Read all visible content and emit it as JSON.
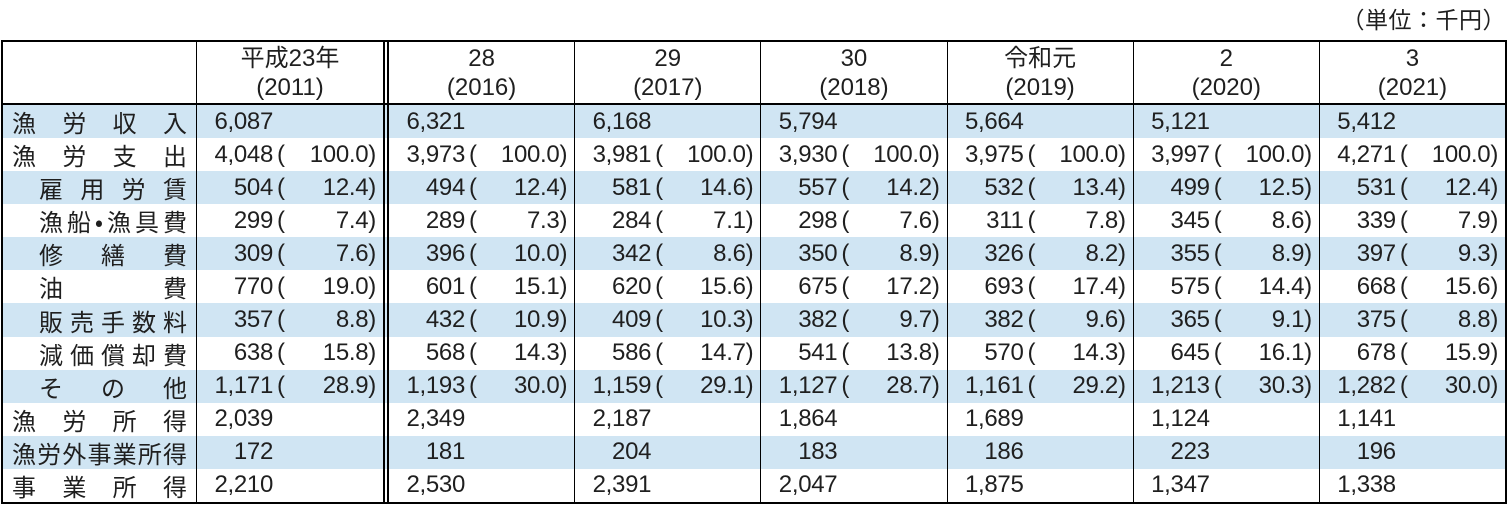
{
  "unit_note": "（単位：千円）",
  "colors": {
    "stripe": "#d0e5f3",
    "border": "#000000",
    "text": "#1f1f1f",
    "page_bg": "#ffffff"
  },
  "table": {
    "corner_label": "",
    "columns": [
      {
        "era": "平成23年",
        "year": "(2011)"
      },
      {
        "era": "28",
        "year": "(2016)"
      },
      {
        "era": "29",
        "year": "(2017)"
      },
      {
        "era": "30",
        "year": "(2018)"
      },
      {
        "era": "令和元",
        "year": "(2019)"
      },
      {
        "era": "2",
        "year": "(2020)"
      },
      {
        "era": "3",
        "year": "(2021)"
      }
    ],
    "rows": [
      {
        "label": "漁労収入",
        "indent": false,
        "values": [
          {
            "num": "6,087"
          },
          {
            "num": "6,321"
          },
          {
            "num": "6,168"
          },
          {
            "num": "5,794"
          },
          {
            "num": "5,664"
          },
          {
            "num": "5,121"
          },
          {
            "num": "5,412"
          }
        ]
      },
      {
        "label": "漁労支出",
        "indent": false,
        "values": [
          {
            "num": "4,048",
            "pct": "100.0"
          },
          {
            "num": "3,973",
            "pct": "100.0"
          },
          {
            "num": "3,981",
            "pct": "100.0"
          },
          {
            "num": "3,930",
            "pct": "100.0"
          },
          {
            "num": "3,975",
            "pct": "100.0"
          },
          {
            "num": "3,997",
            "pct": "100.0"
          },
          {
            "num": "4,271",
            "pct": "100.0"
          }
        ]
      },
      {
        "label": "雇用労賃",
        "indent": true,
        "values": [
          {
            "num": "504",
            "pct": "12.4"
          },
          {
            "num": "494",
            "pct": "12.4"
          },
          {
            "num": "581",
            "pct": "14.6"
          },
          {
            "num": "557",
            "pct": "14.2"
          },
          {
            "num": "532",
            "pct": "13.4"
          },
          {
            "num": "499",
            "pct": "12.5"
          },
          {
            "num": "531",
            "pct": "12.4"
          }
        ]
      },
      {
        "label": "漁船・漁具費",
        "indent": true,
        "values": [
          {
            "num": "299",
            "pct": "7.4"
          },
          {
            "num": "289",
            "pct": "7.3"
          },
          {
            "num": "284",
            "pct": "7.1"
          },
          {
            "num": "298",
            "pct": "7.6"
          },
          {
            "num": "311",
            "pct": "7.8"
          },
          {
            "num": "345",
            "pct": "8.6"
          },
          {
            "num": "339",
            "pct": "7.9"
          }
        ]
      },
      {
        "label": "修繕費",
        "indent": true,
        "values": [
          {
            "num": "309",
            "pct": "7.6"
          },
          {
            "num": "396",
            "pct": "10.0"
          },
          {
            "num": "342",
            "pct": "8.6"
          },
          {
            "num": "350",
            "pct": "8.9"
          },
          {
            "num": "326",
            "pct": "8.2"
          },
          {
            "num": "355",
            "pct": "8.9"
          },
          {
            "num": "397",
            "pct": "9.3"
          }
        ]
      },
      {
        "label": "油費",
        "indent": true,
        "values": [
          {
            "num": "770",
            "pct": "19.0"
          },
          {
            "num": "601",
            "pct": "15.1"
          },
          {
            "num": "620",
            "pct": "15.6"
          },
          {
            "num": "675",
            "pct": "17.2"
          },
          {
            "num": "693",
            "pct": "17.4"
          },
          {
            "num": "575",
            "pct": "14.4"
          },
          {
            "num": "668",
            "pct": "15.6"
          }
        ]
      },
      {
        "label": "販売手数料",
        "indent": true,
        "values": [
          {
            "num": "357",
            "pct": "8.8"
          },
          {
            "num": "432",
            "pct": "10.9"
          },
          {
            "num": "409",
            "pct": "10.3"
          },
          {
            "num": "382",
            "pct": "9.7"
          },
          {
            "num": "382",
            "pct": "9.6"
          },
          {
            "num": "365",
            "pct": "9.1"
          },
          {
            "num": "375",
            "pct": "8.8"
          }
        ]
      },
      {
        "label": "減価償却費",
        "indent": true,
        "values": [
          {
            "num": "638",
            "pct": "15.8"
          },
          {
            "num": "568",
            "pct": "14.3"
          },
          {
            "num": "586",
            "pct": "14.7"
          },
          {
            "num": "541",
            "pct": "13.8"
          },
          {
            "num": "570",
            "pct": "14.3"
          },
          {
            "num": "645",
            "pct": "16.1"
          },
          {
            "num": "678",
            "pct": "15.9"
          }
        ]
      },
      {
        "label": "その他",
        "indent": true,
        "values": [
          {
            "num": "1,171",
            "pct": "28.9"
          },
          {
            "num": "1,193",
            "pct": "30.0"
          },
          {
            "num": "1,159",
            "pct": "29.1"
          },
          {
            "num": "1,127",
            "pct": "28.7"
          },
          {
            "num": "1,161",
            "pct": "29.2"
          },
          {
            "num": "1,213",
            "pct": "30.3"
          },
          {
            "num": "1,282",
            "pct": "30.0"
          }
        ]
      },
      {
        "label": "漁労所得",
        "indent": false,
        "values": [
          {
            "num": "2,039"
          },
          {
            "num": "2,349"
          },
          {
            "num": "2,187"
          },
          {
            "num": "1,864"
          },
          {
            "num": "1,689"
          },
          {
            "num": "1,124"
          },
          {
            "num": "1,141"
          }
        ]
      },
      {
        "label": "漁労外事業所得",
        "indent": false,
        "values": [
          {
            "num": "172"
          },
          {
            "num": "181"
          },
          {
            "num": "204"
          },
          {
            "num": "183"
          },
          {
            "num": "186"
          },
          {
            "num": "223"
          },
          {
            "num": "196"
          }
        ]
      },
      {
        "label": "事業所得",
        "indent": false,
        "values": [
          {
            "num": "2,210"
          },
          {
            "num": "2,530"
          },
          {
            "num": "2,391"
          },
          {
            "num": "2,047"
          },
          {
            "num": "1,875"
          },
          {
            "num": "1,347"
          },
          {
            "num": "1,338"
          }
        ]
      }
    ]
  }
}
